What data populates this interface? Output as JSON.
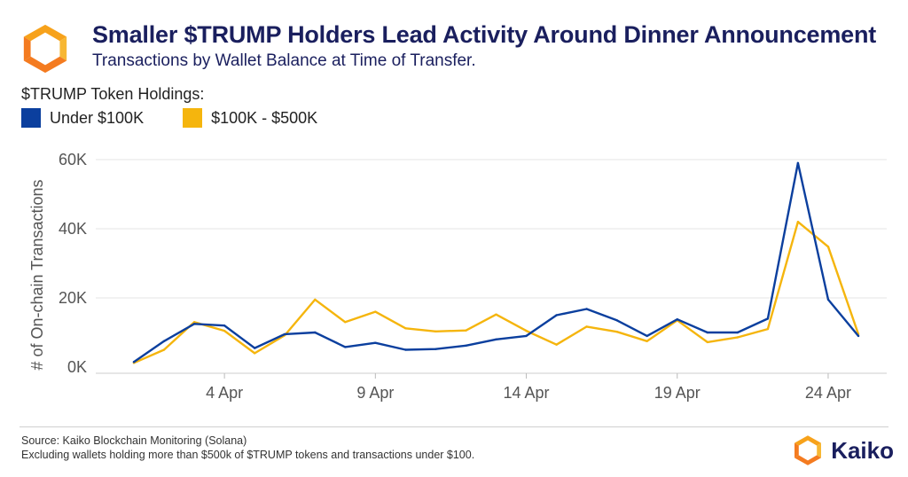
{
  "header": {
    "title": "Smaller $TRUMP Holders Lead Activity Around Dinner Announcement",
    "subtitle": "Transactions by Wallet Balance at Time of Transfer."
  },
  "legend": {
    "title": "$TRUMP Token Holdings:",
    "items": [
      {
        "label": "Under $100K",
        "color": "#0b3f9e"
      },
      {
        "label": "$100K - $500K",
        "color": "#f5b50d"
      }
    ]
  },
  "chart_data": {
    "type": "line",
    "title": "Smaller $TRUMP Holders Lead Activity Around Dinner Announcement",
    "subtitle": "Transactions by Wallet Balance at Time of Transfer.",
    "xlabel": "",
    "ylabel": "# of On-chain Transactions",
    "x": [
      "1 Apr",
      "2 Apr",
      "3 Apr",
      "4 Apr",
      "5 Apr",
      "6 Apr",
      "7 Apr",
      "8 Apr",
      "9 Apr",
      "10 Apr",
      "11 Apr",
      "12 Apr",
      "13 Apr",
      "14 Apr",
      "15 Apr",
      "16 Apr",
      "17 Apr",
      "18 Apr",
      "19 Apr",
      "20 Apr",
      "21 Apr",
      "22 Apr",
      "23 Apr",
      "24 Apr",
      "25 Apr"
    ],
    "xticks": [
      "4 Apr",
      "9 Apr",
      "14 Apr",
      "19 Apr",
      "24 Apr"
    ],
    "yticks": [
      {
        "value": 0,
        "label": "0K"
      },
      {
        "value": 20000,
        "label": "20K"
      },
      {
        "value": 40000,
        "label": "40K"
      },
      {
        "value": 60000,
        "label": "60K"
      }
    ],
    "ylim": [
      0,
      62000
    ],
    "grid": true,
    "legend_position": "top-left",
    "series": [
      {
        "name": "Under $100K",
        "color": "#0b3f9e",
        "values": [
          1500,
          7500,
          12500,
          12000,
          5500,
          9500,
          10000,
          5800,
          7000,
          5000,
          5200,
          6200,
          8000,
          9000,
          15000,
          16800,
          13500,
          9000,
          13800,
          10000,
          10000,
          14000,
          59000,
          19500,
          9000
        ]
      },
      {
        "name": "$100K - $500K",
        "color": "#f5b50d",
        "values": [
          1200,
          5000,
          13000,
          10500,
          4000,
          9200,
          19500,
          13000,
          16000,
          11200,
          10300,
          10600,
          15200,
          10500,
          6500,
          11700,
          10200,
          7500,
          13500,
          7200,
          8600,
          11000,
          42000,
          34800,
          9500
        ]
      }
    ]
  },
  "footer": {
    "source": "Source: Kaiko Blockchain Monitoring (Solana)",
    "note": "Excluding wallets holding more than $500k of $TRUMP tokens and transactions under $100.",
    "brand": "Kaiko"
  }
}
